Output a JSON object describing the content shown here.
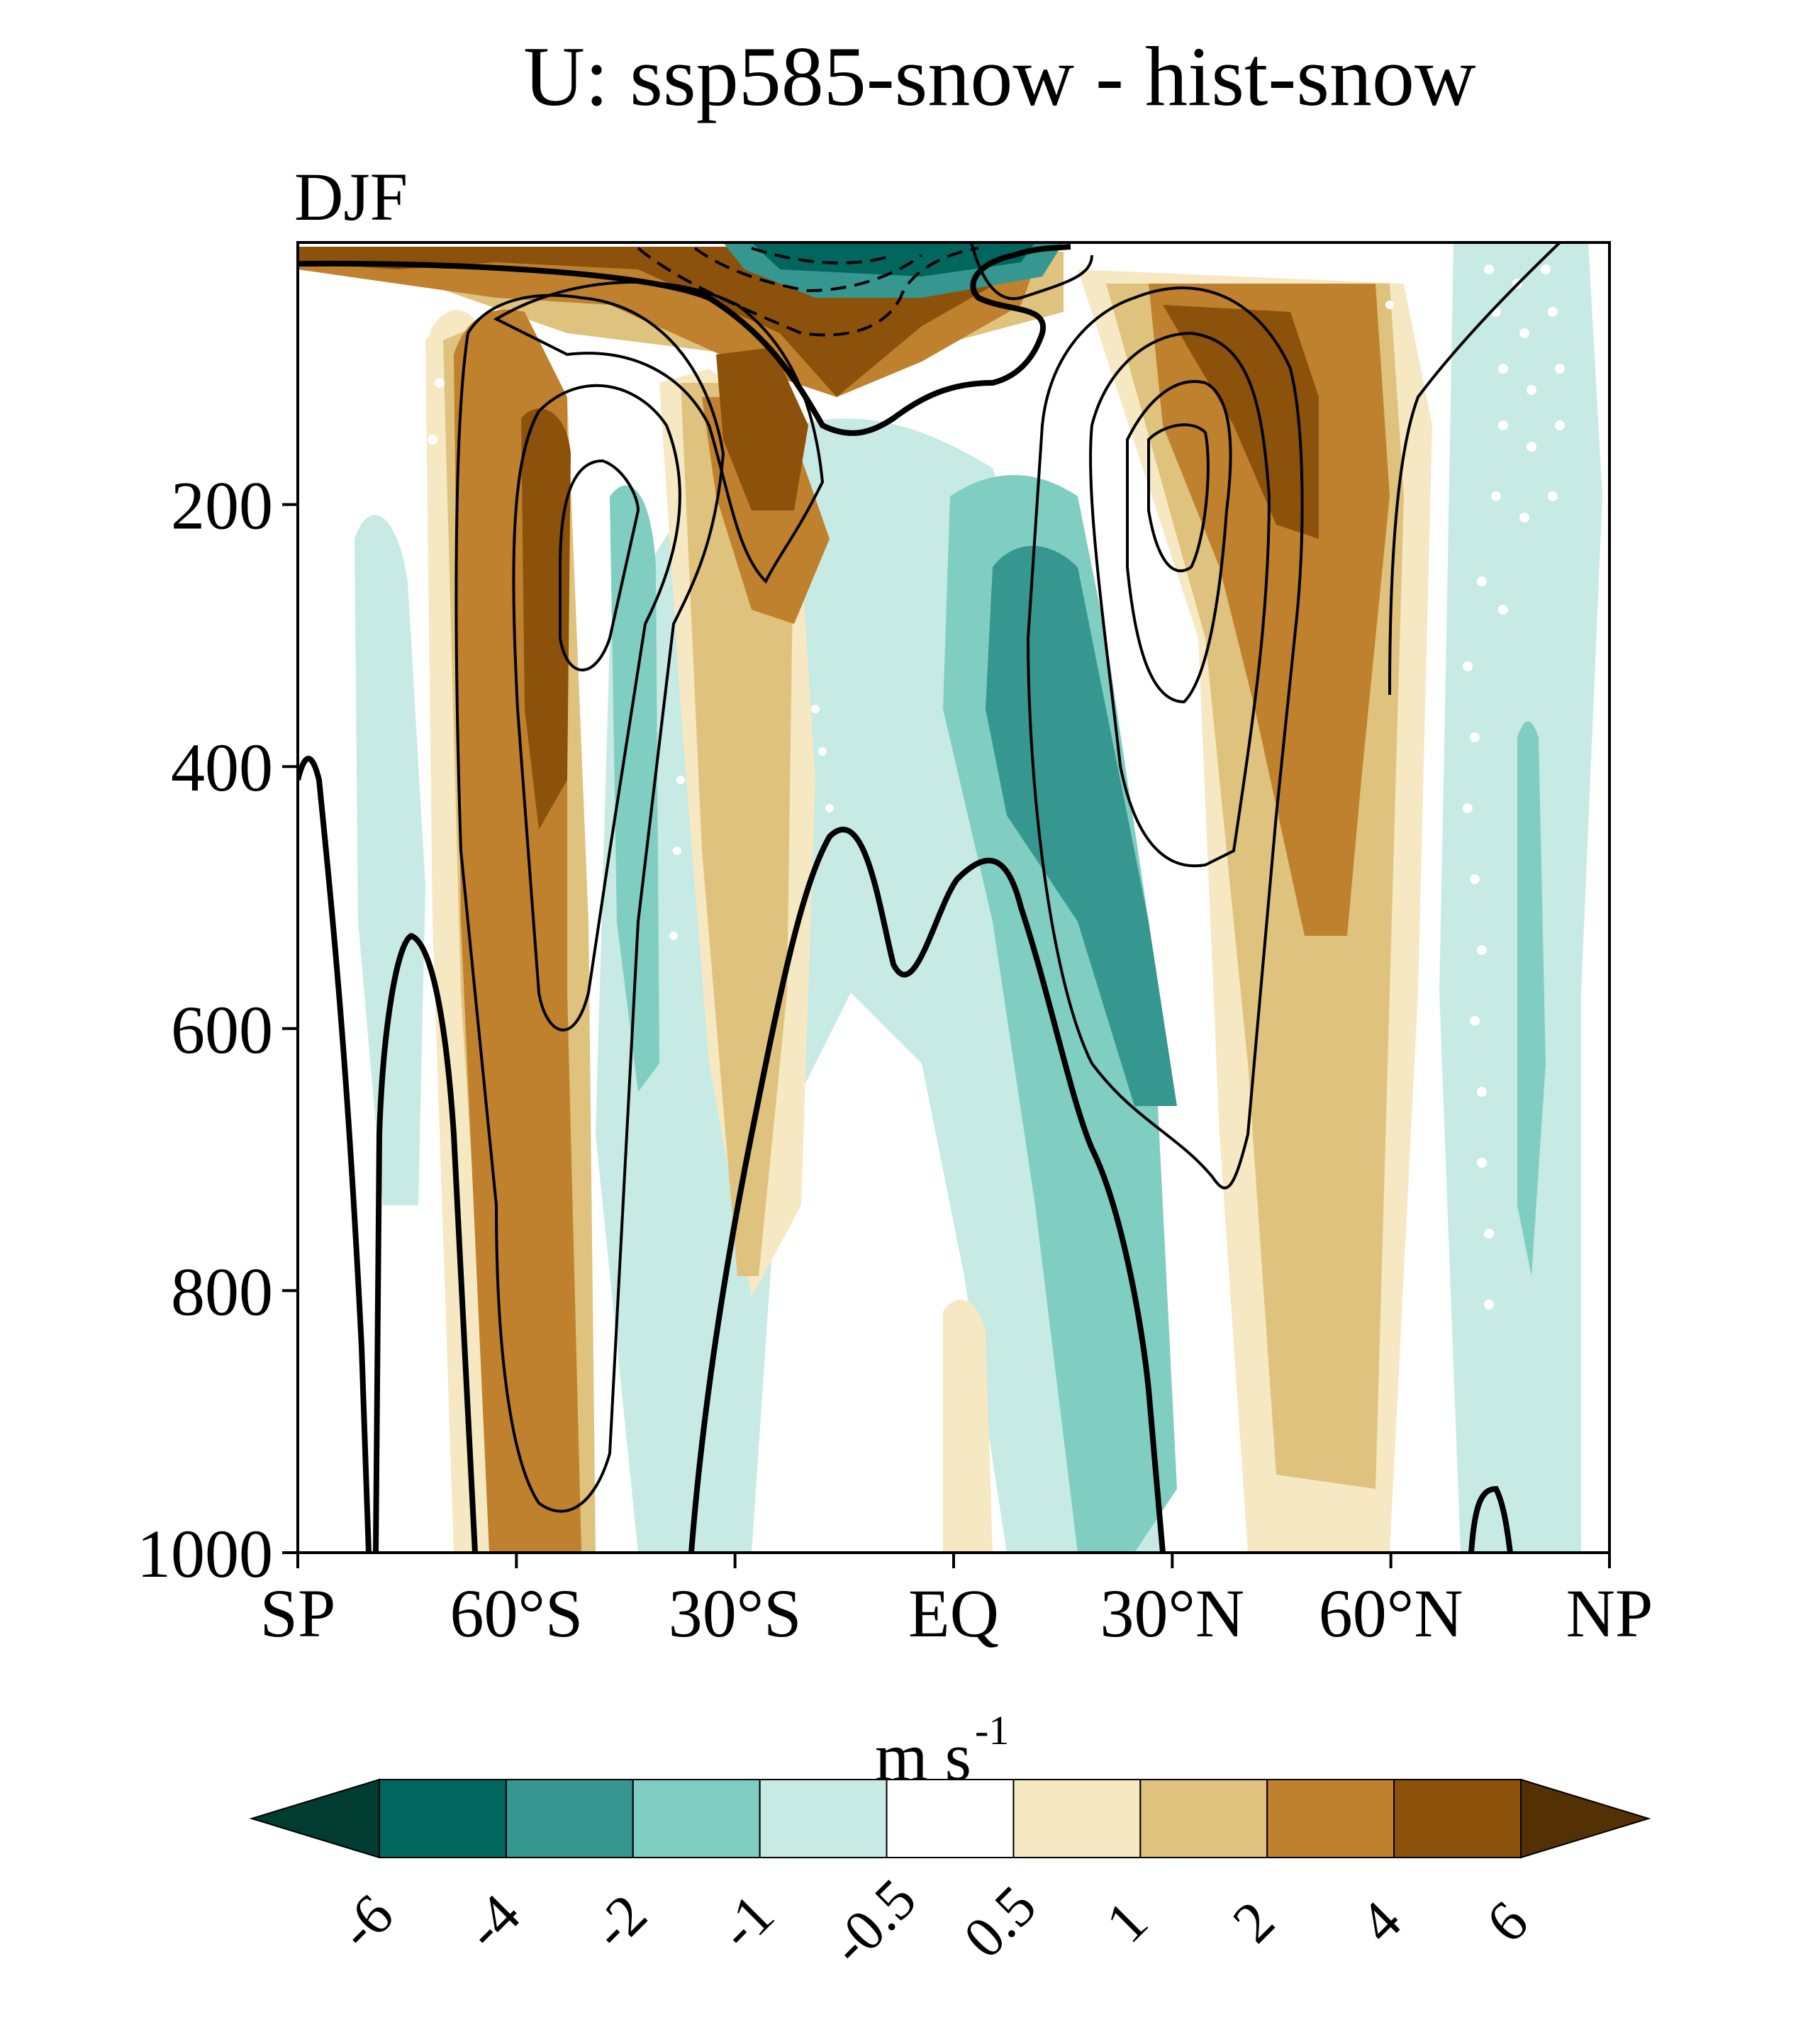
{
  "chart_data": {
    "type": "contour",
    "title": "U: ssp585-snow - hist-snow",
    "subtitle": "DJF",
    "xlabel": "",
    "ylabel": "",
    "x_ticks": [
      {
        "value": -90,
        "label": "SP"
      },
      {
        "value": -60,
        "label": "60°S"
      },
      {
        "value": -30,
        "label": "30°S"
      },
      {
        "value": 0,
        "label": "EQ"
      },
      {
        "value": 30,
        "label": "30°N"
      },
      {
        "value": 60,
        "label": "60°N"
      },
      {
        "value": 90,
        "label": "NP"
      }
    ],
    "xlim": [
      -90,
      90
    ],
    "y_ticks": [
      {
        "value": 200,
        "label": "200"
      },
      {
        "value": 400,
        "label": "400"
      },
      {
        "value": 600,
        "label": "600"
      },
      {
        "value": 800,
        "label": "800"
      },
      {
        "value": 1000,
        "label": "1000"
      }
    ],
    "ylim": [
      1000,
      0
    ],
    "y_inverted": true,
    "colorbar": {
      "label": "m s",
      "label_sup": "-1",
      "levels": [
        "-6",
        "-4",
        "-2",
        "-1",
        "-0.5",
        "0.5",
        "1",
        "2",
        "4",
        "6"
      ],
      "colors": [
        "#003c30",
        "#01665e",
        "#35978f",
        "#80cdc1",
        "#c7eae5",
        "#ffffff",
        "#f6e8c3",
        "#dfc27d",
        "#bf812d",
        "#8c510a",
        "#543005"
      ]
    },
    "shaded_features": [
      {
        "name": "SH jet flank positive",
        "lat": [
          -66,
          -44
        ],
        "p": [
          60,
          1000
        ],
        "peak": 4
      },
      {
        "name": "SH subtropical negative",
        "lat": [
          -46,
          -38
        ],
        "p": [
          200,
          600
        ],
        "peak": -2
      },
      {
        "name": "SH subtropical positive",
        "lat": [
          -38,
          -20
        ],
        "p": [
          60,
          900
        ],
        "peak": 4
      },
      {
        "name": "Tropical upper positive",
        "lat": [
          -30,
          20
        ],
        "p": [
          0,
          150
        ],
        "peak": 4
      },
      {
        "name": "Tropical negative",
        "lat": [
          -5,
          35
        ],
        "p": [
          180,
          1000
        ],
        "peak": -4
      },
      {
        "name": "NH jet flank positive",
        "lat": [
          30,
          55
        ],
        "p": [
          80,
          900
        ],
        "peak": 4
      },
      {
        "name": "Polar stratosphere negative",
        "lat": [
          -20,
          25
        ],
        "p": [
          0,
          40
        ],
        "peak": -6
      },
      {
        "name": "NH high-latitude negative",
        "lat": [
          70,
          80
        ],
        "p": [
          380,
          1000
        ],
        "peak": -2
      }
    ],
    "contour_note": "Solid contours: climatological zonal wind; thick line: zero contour; dashed: easterlies. White dots: non-significant regions."
  }
}
